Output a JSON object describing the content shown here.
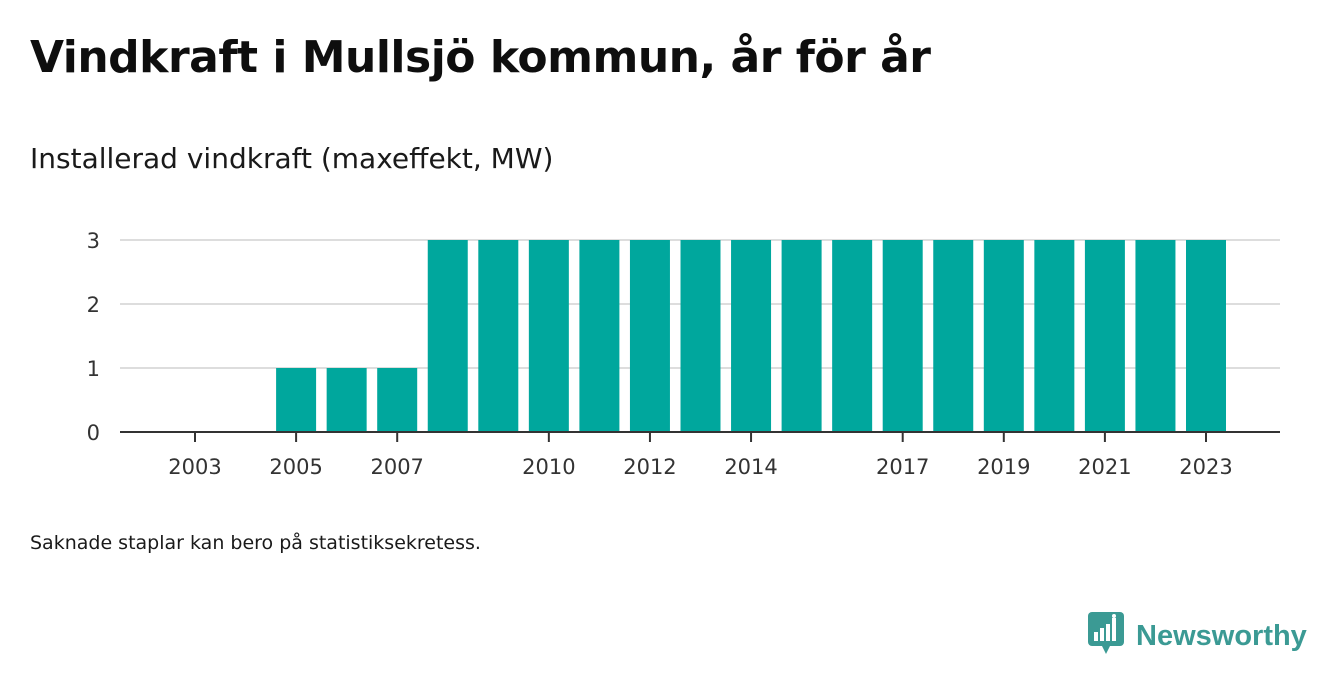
{
  "title": "Vindkraft i Mullsjö kommun, år för år",
  "subtitle": "Installerad vindkraft (maxeffekt, MW)",
  "footnote": "Saknade staplar kan bero på statistiksekretess.",
  "brand": {
    "name": "Newsworthy",
    "color": "#3b9a94",
    "icon": "bar-chart-speech-bubble-icon"
  },
  "chart_data": {
    "type": "bar",
    "bar_color": "#00a79d",
    "x": [
      2003,
      2004,
      2005,
      2006,
      2007,
      2008,
      2009,
      2010,
      2011,
      2012,
      2013,
      2014,
      2015,
      2016,
      2017,
      2018,
      2019,
      2020,
      2021,
      2022,
      2023
    ],
    "values": [
      0,
      0,
      1,
      1,
      1,
      3,
      3,
      3,
      3,
      3,
      3,
      3,
      3,
      3,
      3,
      3,
      3,
      3,
      3,
      3,
      3
    ],
    "x_tick_labels": [
      "2003",
      "2005",
      "2007",
      "2010",
      "2012",
      "2014",
      "2017",
      "2019",
      "2021",
      "2023"
    ],
    "y_ticks": [
      0,
      1,
      2,
      3
    ],
    "ylim": [
      0,
      3
    ],
    "grid": true
  }
}
